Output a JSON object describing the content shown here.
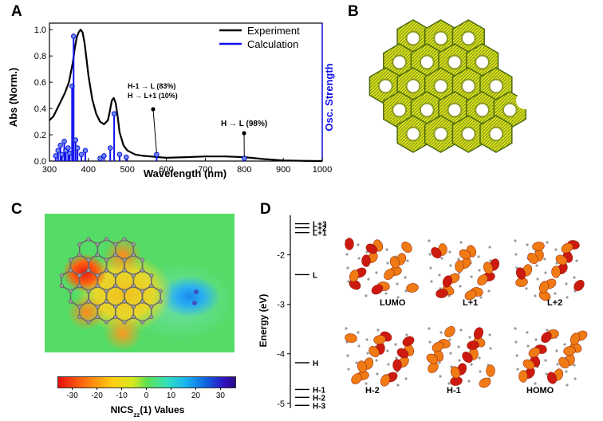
{
  "panels": {
    "a": "A",
    "b": "B",
    "c": "C",
    "d": "D"
  },
  "chart_data": [
    {
      "type": "line",
      "panel": "A",
      "xlabel": "Wavelength (nm)",
      "ylabel": "Abs (Norm.)",
      "y2label": "Osc. Strength",
      "xlim": [
        300,
        1000
      ],
      "ylim": [
        0,
        1.05
      ],
      "xticks": [
        300,
        400,
        500,
        600,
        700,
        800,
        900,
        1000
      ],
      "yticks": [
        0.0,
        0.2,
        0.4,
        0.6,
        0.8,
        1.0
      ],
      "ytick_labels": [
        "0.0",
        "0.2",
        "0.4",
        "0.6",
        "0.8",
        "1.0"
      ],
      "legend": {
        "position": "top-right",
        "items": [
          {
            "name": "Experiment",
            "color": "#000000"
          },
          {
            "name": "Calculation",
            "color": "#1010ee"
          }
        ]
      },
      "series": [
        {
          "name": "Experiment",
          "color": "#000000",
          "x": [
            300,
            310,
            320,
            330,
            340,
            350,
            360,
            365,
            370,
            375,
            380,
            385,
            390,
            395,
            400,
            410,
            420,
            430,
            440,
            450,
            455,
            460,
            465,
            470,
            475,
            480,
            490,
            500,
            520,
            540,
            560,
            580,
            600,
            650,
            700,
            750,
            800,
            850,
            900,
            950,
            1000
          ],
          "y": [
            0.31,
            0.34,
            0.4,
            0.46,
            0.52,
            0.6,
            0.75,
            0.86,
            0.94,
            0.98,
            1.0,
            0.98,
            0.9,
            0.78,
            0.65,
            0.47,
            0.36,
            0.3,
            0.28,
            0.31,
            0.38,
            0.46,
            0.48,
            0.44,
            0.34,
            0.22,
            0.12,
            0.08,
            0.05,
            0.04,
            0.035,
            0.03,
            0.025,
            0.03,
            0.035,
            0.035,
            0.03,
            0.015,
            0.005,
            0.002,
            0.0
          ]
        },
        {
          "name": "Calculation",
          "color": "#1010ee",
          "type": "stem",
          "x": [
            316,
            322,
            328,
            332,
            338,
            342,
            348,
            352,
            358,
            362,
            367,
            372,
            382,
            392,
            430,
            440,
            456,
            466,
            480,
            497,
            575,
            800
          ],
          "y": [
            0.04,
            0.08,
            0.12,
            0.05,
            0.15,
            0.08,
            0.1,
            0.06,
            0.57,
            0.95,
            0.16,
            0.1,
            0.05,
            0.08,
            0.02,
            0.04,
            0.1,
            0.36,
            0.05,
            0.03,
            0.05,
            0.02
          ]
        }
      ],
      "annotations": [
        {
          "lines": [
            "H-1 → L (83%)",
            "H → L+1 (10%)"
          ],
          "x": 575,
          "y": 0.05
        },
        {
          "lines": [
            "H → L (98%)"
          ],
          "x": 800,
          "y": 0.02
        }
      ]
    },
    {
      "type": "heatmap",
      "panel": "C",
      "colorbar_ticks": [
        -30,
        -20,
        -10,
        0,
        10,
        20,
        30
      ],
      "colorbar_label": "NICS",
      "colorbar_label_sub": "zz",
      "colorbar_label_tail": "(1) Values",
      "colorbar_range": [
        -36,
        36
      ]
    },
    {
      "type": "scatter",
      "panel": "D",
      "ylabel": "Energy (eV)",
      "ylim": [
        -5.1,
        -1.2
      ],
      "yticks": [
        -2,
        -3,
        -4,
        -5
      ],
      "levels": [
        {
          "label": "L+3",
          "energy": -1.37
        },
        {
          "label": "L+2",
          "energy": -1.45
        },
        {
          "label": "L+1",
          "energy": -1.55
        },
        {
          "label": "L",
          "energy": -2.4
        },
        {
          "label": "H",
          "energy": -4.18
        },
        {
          "label": "H-1",
          "energy": -4.72
        },
        {
          "label": "H-2",
          "energy": -4.88
        },
        {
          "label": "H-3",
          "energy": -5.04
        }
      ],
      "orbitals": [
        "LUMO",
        "L+1",
        "L+2",
        "H-2",
        "H-1",
        "HOMO"
      ]
    }
  ]
}
